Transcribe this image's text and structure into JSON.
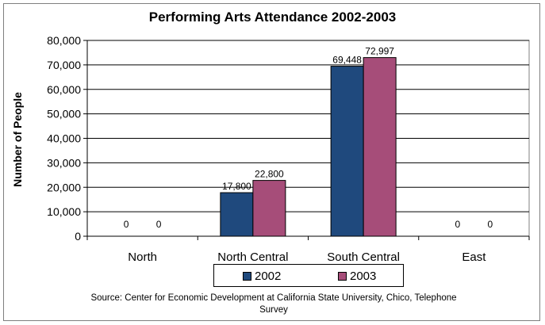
{
  "chart_data": {
    "type": "bar",
    "title": "Performing Arts Attendance 2002-2003",
    "xlabel": "",
    "ylabel": "Number of People",
    "ylim": [
      0,
      80000
    ],
    "yticks": [
      0,
      10000,
      20000,
      30000,
      40000,
      50000,
      60000,
      70000,
      80000
    ],
    "ytick_labels": [
      "0",
      "10,000",
      "20,000",
      "30,000",
      "40,000",
      "50,000",
      "60,000",
      "70,000",
      "80,000"
    ],
    "categories": [
      "North",
      "North Central",
      "South Central",
      "East"
    ],
    "series": [
      {
        "name": "2002",
        "color": "#1f497d",
        "values": [
          0,
          17800,
          69448,
          0
        ],
        "labels": [
          "0",
          "17,800",
          "69,448",
          "0"
        ]
      },
      {
        "name": "2003",
        "color": "#a64d79",
        "values": [
          0,
          22800,
          72997,
          0
        ],
        "labels": [
          "0",
          "22,800",
          "72,997",
          "0"
        ]
      }
    ],
    "grid": true,
    "legend": "bottom",
    "source": "Source: Center for Economic Development at California State University, Chico, Telephone Survey"
  }
}
